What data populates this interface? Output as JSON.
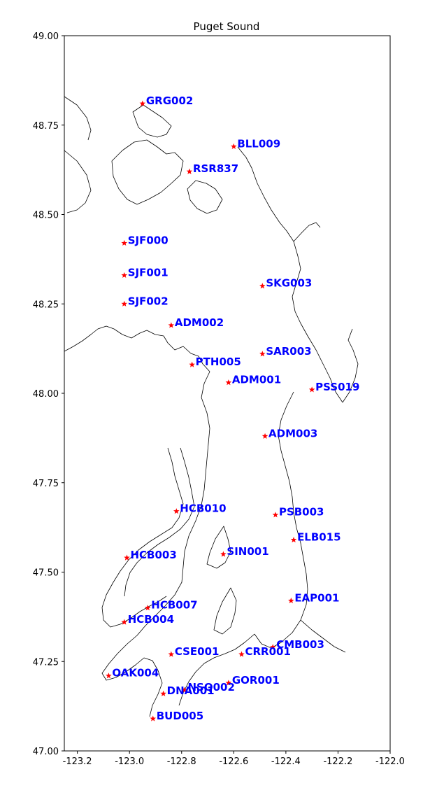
{
  "chart_data": {
    "type": "scatter",
    "title": "Puget Sound",
    "xlabel": "",
    "ylabel": "",
    "xlim": [
      -123.25,
      -122.0
    ],
    "ylim": [
      47.0,
      49.0
    ],
    "xticks": [
      "-123.2",
      "-123.0",
      "-122.8",
      "-122.6",
      "-122.4",
      "-122.2",
      "-122.0"
    ],
    "yticks": [
      "47.00",
      "47.25",
      "47.50",
      "47.75",
      "48.00",
      "48.25",
      "48.50",
      "48.75",
      "49.00"
    ],
    "xtick_values": [
      -123.2,
      -123.0,
      -122.8,
      -122.6,
      -122.4,
      -122.2,
      -122.0
    ],
    "ytick_values": [
      47.0,
      47.25,
      47.5,
      47.75,
      48.0,
      48.25,
      48.5,
      48.75,
      49.0
    ],
    "grid": false,
    "marker": "star",
    "marker_color": "#ff0000",
    "label_color": "#0000ff",
    "points": [
      {
        "name": "GRG002",
        "x": -122.95,
        "y": 48.81
      },
      {
        "name": "BLL009",
        "x": -122.6,
        "y": 48.69
      },
      {
        "name": "RSR837",
        "x": -122.77,
        "y": 48.62
      },
      {
        "name": "SJF000",
        "x": -123.02,
        "y": 48.42
      },
      {
        "name": "SJF001",
        "x": -123.02,
        "y": 48.33
      },
      {
        "name": "SJF002",
        "x": -123.02,
        "y": 48.25
      },
      {
        "name": "SKG003",
        "x": -122.49,
        "y": 48.3
      },
      {
        "name": "ADM002",
        "x": -122.84,
        "y": 48.19
      },
      {
        "name": "SAR003",
        "x": -122.49,
        "y": 48.11
      },
      {
        "name": "PTH005",
        "x": -122.76,
        "y": 48.08
      },
      {
        "name": "ADM001",
        "x": -122.62,
        "y": 48.03
      },
      {
        "name": "PSS019",
        "x": -122.3,
        "y": 48.01
      },
      {
        "name": "ADM003",
        "x": -122.48,
        "y": 47.88
      },
      {
        "name": "HCB010",
        "x": -122.82,
        "y": 47.67
      },
      {
        "name": "PSB003",
        "x": -122.44,
        "y": 47.66
      },
      {
        "name": "ELB015",
        "x": -122.37,
        "y": 47.59
      },
      {
        "name": "HCB003",
        "x": -123.01,
        "y": 47.54
      },
      {
        "name": "SIN001",
        "x": -122.64,
        "y": 47.55
      },
      {
        "name": "EAP001",
        "x": -122.38,
        "y": 47.42
      },
      {
        "name": "HCB007",
        "x": -122.93,
        "y": 47.4
      },
      {
        "name": "HCB004",
        "x": -123.02,
        "y": 47.36
      },
      {
        "name": "CMB003",
        "x": -122.45,
        "y": 47.29
      },
      {
        "name": "CRR001",
        "x": -122.57,
        "y": 47.27
      },
      {
        "name": "CSE001",
        "x": -122.84,
        "y": 47.27
      },
      {
        "name": "OAK004",
        "x": -123.08,
        "y": 47.21
      },
      {
        "name": "GOR001",
        "x": -122.62,
        "y": 47.19
      },
      {
        "name": "NSQ002",
        "x": -122.79,
        "y": 47.17
      },
      {
        "name": "DNA001",
        "x": -122.87,
        "y": 47.16
      },
      {
        "name": "BUD005",
        "x": -122.91,
        "y": 47.09
      }
    ]
  }
}
